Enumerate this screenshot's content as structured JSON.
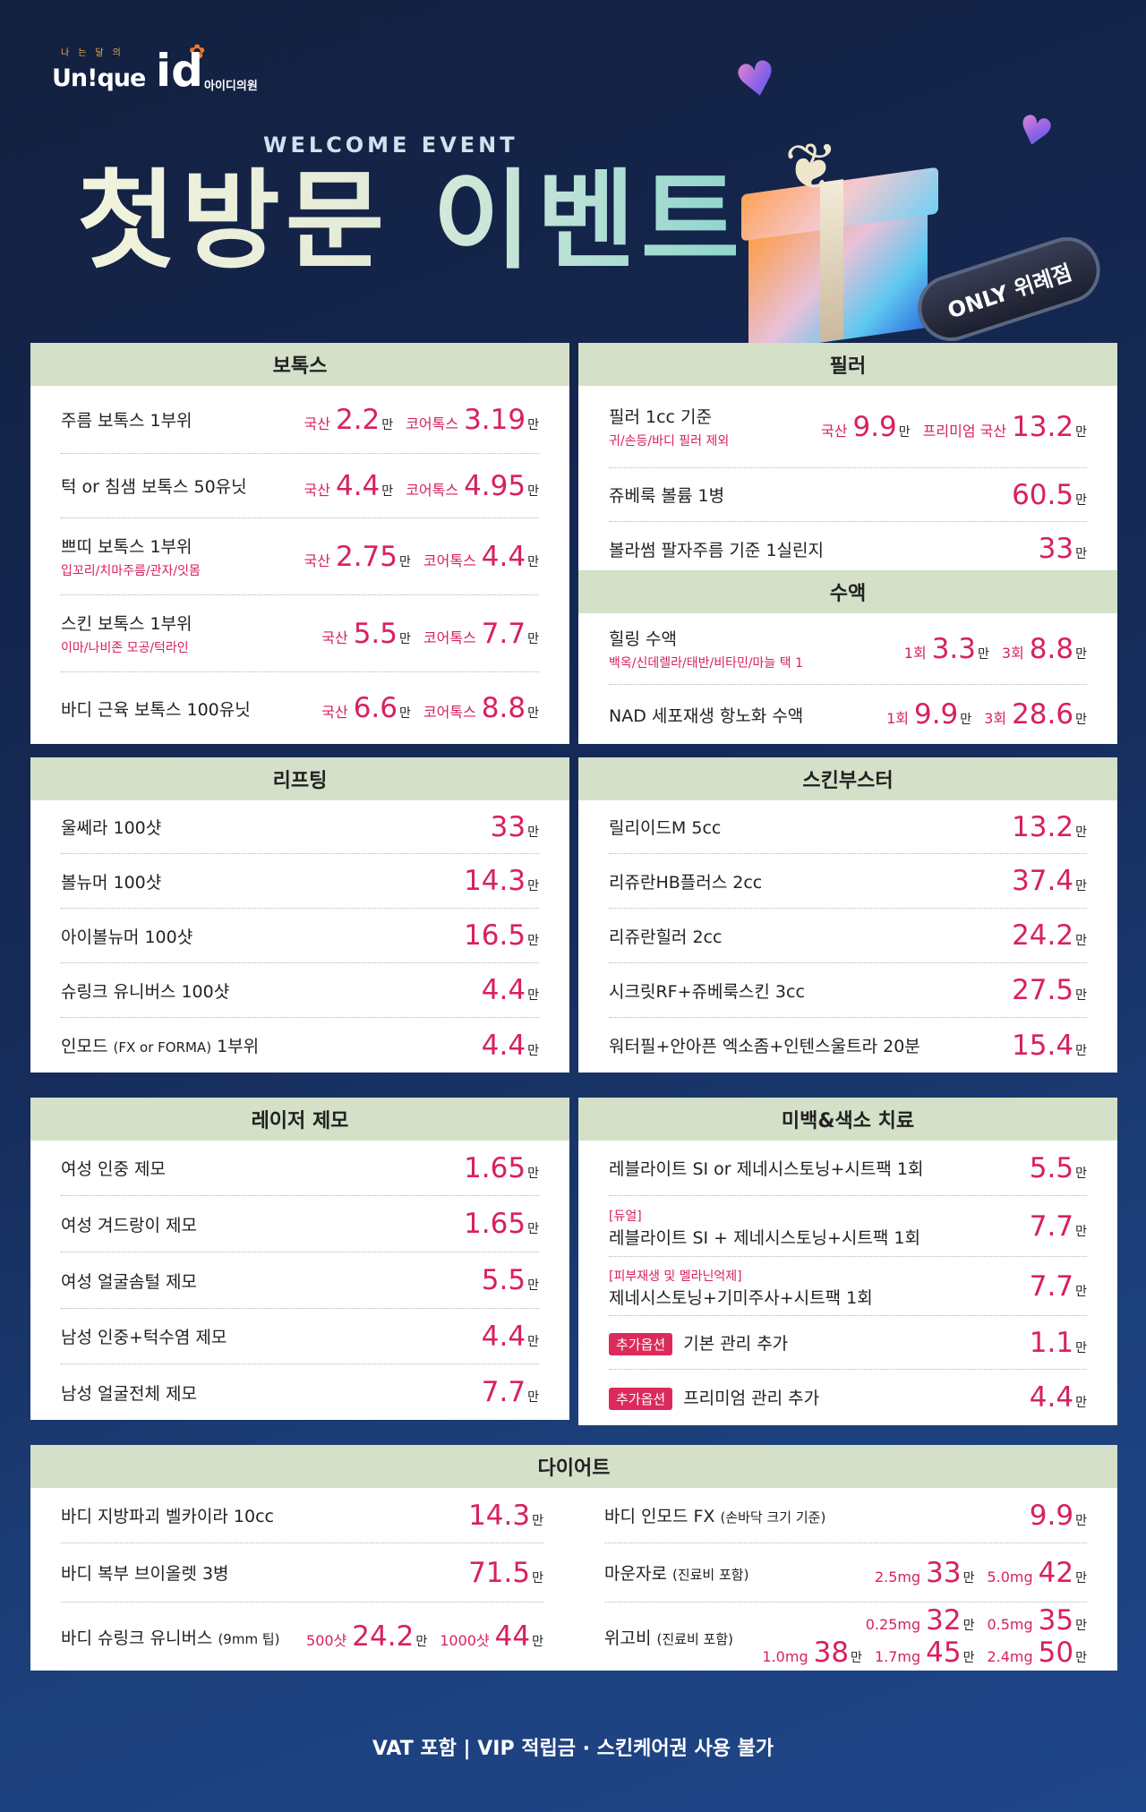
{
  "brand": {
    "tiny": "나는달의",
    "uni": "Un!que",
    "id": "id",
    "clinic": "아이디의원"
  },
  "hero": {
    "welcome": "WELCOME EVENT",
    "title": "첫방문 이벤트",
    "badge": "ONLY 위례점"
  },
  "botox": {
    "title": "보톡스",
    "rows": [
      {
        "name": "주름 보톡스 1부위",
        "sub": "",
        "p": [
          [
            "국산",
            "2.2"
          ],
          [
            "코어톡스",
            "3.19"
          ]
        ]
      },
      {
        "name": "턱 or 침샘 보톡스 50유닛",
        "sub": "",
        "p": [
          [
            "국산",
            "4.4"
          ],
          [
            "코어톡스",
            "4.95"
          ]
        ]
      },
      {
        "name": "쁘띠 보톡스 1부위",
        "sub": "입꼬리/치마주름/관자/잇몸",
        "p": [
          [
            "국산",
            "2.75"
          ],
          [
            "코어톡스",
            "4.4"
          ]
        ]
      },
      {
        "name": "스킨 보톡스 1부위",
        "sub": "이마/나비존 모공/턱라인",
        "p": [
          [
            "국산",
            "5.5"
          ],
          [
            "코어톡스",
            "7.7"
          ]
        ]
      },
      {
        "name": "바디 근육 보톡스 100유닛",
        "sub": "",
        "p": [
          [
            "국산",
            "6.6"
          ],
          [
            "코어톡스",
            "8.8"
          ]
        ]
      }
    ]
  },
  "filler": {
    "title": "필러",
    "rows": [
      {
        "name": "필러 1cc 기준",
        "sub": "귀/손등/바디 필러 제외",
        "p": [
          [
            "국산",
            "9.9"
          ],
          [
            "프리미엄 국산",
            "13.2"
          ]
        ]
      },
      {
        "name": "쥬베룩 볼륨 1병",
        "sub": "",
        "p": [
          [
            "",
            "60.5"
          ]
        ]
      },
      {
        "name": "볼라썸 팔자주름 기준 1실린지",
        "sub": "",
        "p": [
          [
            "",
            "33"
          ]
        ]
      }
    ]
  },
  "iv": {
    "title": "수액",
    "rows": [
      {
        "name": "힐링 수액",
        "sub": "백옥/신데렐라/태반/비타민/마늘 택 1",
        "p": [
          [
            "1회",
            "3.3"
          ],
          [
            "3회",
            "8.8"
          ]
        ]
      },
      {
        "name": "NAD 세포재생 항노화 수액",
        "sub": "",
        "p": [
          [
            "1회",
            "9.9"
          ],
          [
            "3회",
            "28.6"
          ]
        ]
      }
    ]
  },
  "lifting": {
    "title": "리프팅",
    "rows": [
      {
        "name": "울쎄라 100샷",
        "p": [
          [
            "",
            "33"
          ]
        ]
      },
      {
        "name": "볼뉴머 100샷",
        "p": [
          [
            "",
            "14.3"
          ]
        ]
      },
      {
        "name": "아이볼뉴머 100샷",
        "p": [
          [
            "",
            "16.5"
          ]
        ]
      },
      {
        "name": "슈링크 유니버스 100샷",
        "p": [
          [
            "",
            "4.4"
          ]
        ]
      },
      {
        "name": "인모드",
        "small": "(FX or FORMA)",
        "name2": "1부위",
        "p": [
          [
            "",
            "4.4"
          ]
        ]
      }
    ]
  },
  "booster": {
    "title": "스킨부스터",
    "rows": [
      {
        "name": "릴리이드M 5cc",
        "p": [
          [
            "",
            "13.2"
          ]
        ]
      },
      {
        "name": "리쥬란HB플러스 2cc",
        "p": [
          [
            "",
            "37.4"
          ]
        ]
      },
      {
        "name": "리쥬란힐러 2cc",
        "p": [
          [
            "",
            "24.2"
          ]
        ]
      },
      {
        "name": "시크릿RF+쥬베룩스킨 3cc",
        "p": [
          [
            "",
            "27.5"
          ]
        ]
      },
      {
        "name": "워터필+안아픈 엑소좀+인텐스울트라 20분",
        "p": [
          [
            "",
            "15.4"
          ]
        ]
      }
    ]
  },
  "laser": {
    "title": "레이저 제모",
    "rows": [
      {
        "name": "여성 인중 제모",
        "p": [
          [
            "",
            "1.65"
          ]
        ]
      },
      {
        "name": "여성 겨드랑이 제모",
        "p": [
          [
            "",
            "1.65"
          ]
        ]
      },
      {
        "name": "여성 얼굴솜털 제모",
        "p": [
          [
            "",
            "5.5"
          ]
        ]
      },
      {
        "name": "남성 인중+턱수염 제모",
        "p": [
          [
            "",
            "4.4"
          ]
        ]
      },
      {
        "name": "남성 얼굴전체 제모",
        "p": [
          [
            "",
            "7.7"
          ]
        ]
      }
    ]
  },
  "whitening": {
    "title": "미백&색소 치료",
    "rows": [
      {
        "pre": "",
        "tag": "",
        "name": "레블라이트 SI or 제네시스토닝+시트팩 1회",
        "p": [
          [
            "",
            "5.5"
          ]
        ]
      },
      {
        "pre": "[듀얼]",
        "tag": "",
        "name": "레블라이트 SI + 제네시스토닝+시트팩 1회",
        "p": [
          [
            "",
            "7.7"
          ]
        ]
      },
      {
        "pre": "[피부재생 및 멜라닌억제]",
        "tag": "",
        "name": "제네시스토닝+기미주사+시트팩 1회",
        "p": [
          [
            "",
            "7.7"
          ]
        ]
      },
      {
        "pre": "",
        "tag": "추가옵션",
        "name": "기본 관리 추가",
        "p": [
          [
            "",
            "1.1"
          ]
        ]
      },
      {
        "pre": "",
        "tag": "추가옵션",
        "name": "프리미엄 관리 추가",
        "p": [
          [
            "",
            "4.4"
          ]
        ]
      }
    ]
  },
  "diet": {
    "title": "다이어트",
    "left": [
      {
        "name": "바디 지방파괴 벨카이라 10cc",
        "small": "",
        "p": [
          [
            "",
            "14.3"
          ]
        ]
      },
      {
        "name": "바디 복부 브이올렛 3병",
        "small": "",
        "p": [
          [
            "",
            "71.5"
          ]
        ]
      },
      {
        "name": "바디 슈링크 유니버스",
        "small": "(9mm 팁)",
        "p": [
          [
            "500샷",
            "24.2"
          ],
          [
            "1000샷",
            "44"
          ]
        ]
      }
    ],
    "right": [
      {
        "name": "바디 인모드 FX",
        "small": "(손바닥 크기 기준)",
        "p": [
          [
            "",
            "9.9"
          ]
        ]
      },
      {
        "name": "마운자로",
        "small": "(진료비 포함)",
        "p": [
          [
            "2.5mg",
            "33"
          ],
          [
            "5.0mg",
            "42"
          ]
        ]
      },
      {
        "name": "위고비",
        "small": "(진료비 포함)",
        "p": [
          [
            "0.25mg",
            "32"
          ],
          [
            "0.5mg",
            "35"
          ]
        ],
        "p2": [
          [
            "1.0mg",
            "38"
          ],
          [
            "1.7mg",
            "45"
          ],
          [
            "2.4mg",
            "50"
          ]
        ]
      }
    ]
  },
  "unit": "만",
  "footer": "VAT 포함  |  VIP 적립금 · 스킨케어권 사용 불가"
}
